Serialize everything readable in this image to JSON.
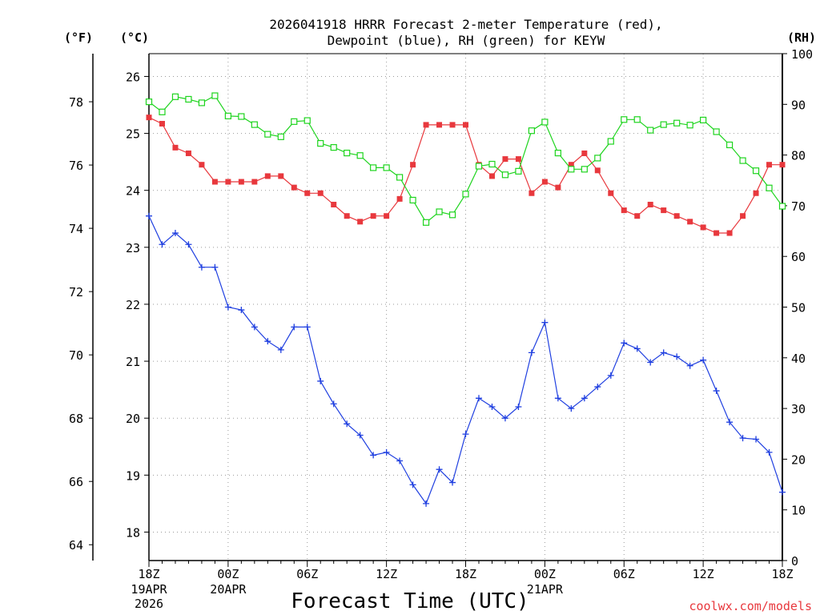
{
  "chart_data": {
    "type": "line",
    "title": [
      "2026041918 HRRR Forecast 2-meter Temperature (red),",
      "Dewpoint (blue), RH (green) for KEYW"
    ],
    "xlabel": "Forecast Time (UTC)",
    "credit": "coolwx.com/models",
    "units": {
      "fahrenheit": "(°F)",
      "celsius": "(°C)",
      "rh": "(RH)"
    },
    "x_hours": {
      "min": 0,
      "max": 48,
      "step": 6
    },
    "x_ticks": [
      {
        "hour": 0,
        "label": "18Z",
        "sub": [
          "19APR",
          "2026"
        ]
      },
      {
        "hour": 6,
        "label": "00Z",
        "sub": [
          "20APR"
        ]
      },
      {
        "hour": 12,
        "label": "06Z",
        "sub": []
      },
      {
        "hour": 18,
        "label": "12Z",
        "sub": []
      },
      {
        "hour": 24,
        "label": "18Z",
        "sub": []
      },
      {
        "hour": 30,
        "label": "00Z",
        "sub": [
          "21APR"
        ]
      },
      {
        "hour": 36,
        "label": "06Z",
        "sub": []
      },
      {
        "hour": 42,
        "label": "12Z",
        "sub": []
      },
      {
        "hour": 48,
        "label": "18Z",
        "sub": []
      }
    ],
    "ylim_celsius": [
      17.5,
      26.4
    ],
    "y_celsius_ticks": [
      "18",
      "19",
      "20",
      "21",
      "22",
      "23",
      "24",
      "25",
      "26"
    ],
    "y_fahrenheit_ticks": [
      "64",
      "66",
      "68",
      "70",
      "72",
      "74",
      "76",
      "78"
    ],
    "ylim_rh": [
      0,
      100
    ],
    "y_rh_ticks": [
      "0",
      "10",
      "20",
      "30",
      "40",
      "50",
      "60",
      "70",
      "80",
      "90",
      "100"
    ],
    "series": [
      {
        "name": "Temperature",
        "color": "#e8383d",
        "marker": "filled-square",
        "axis": "celsius",
        "values": [
          25.28,
          25.17,
          24.75,
          24.65,
          24.45,
          24.15,
          24.15,
          24.15,
          24.15,
          24.25,
          24.25,
          24.05,
          23.95,
          23.95,
          23.75,
          23.55,
          23.45,
          23.55,
          23.55,
          23.85,
          24.45,
          25.15,
          25.15,
          25.15,
          25.15,
          24.45,
          24.25,
          24.55,
          24.55,
          23.95,
          24.15,
          24.05,
          24.45,
          24.65,
          24.35,
          23.95,
          23.65,
          23.55,
          23.75,
          23.65,
          23.55,
          23.45,
          23.35,
          23.25,
          23.25,
          23.55,
          23.95,
          24.45,
          24.45
        ]
      },
      {
        "name": "Dewpoint",
        "color": "#1f3fe0",
        "marker": "plus",
        "axis": "celsius",
        "values": [
          23.55,
          23.05,
          23.25,
          23.05,
          22.65,
          22.65,
          21.95,
          21.9,
          21.6,
          21.35,
          21.2,
          21.6,
          21.6,
          20.65,
          20.25,
          19.9,
          19.7,
          19.35,
          19.4,
          19.25,
          18.83,
          18.5,
          19.1,
          18.87,
          19.72,
          20.35,
          20.2,
          20.0,
          20.2,
          21.15,
          21.68,
          20.35,
          20.17,
          20.35,
          20.55,
          20.75,
          21.32,
          21.22,
          20.98,
          21.15,
          21.08,
          20.92,
          21.02,
          20.48,
          19.93,
          19.65,
          19.63,
          19.4,
          18.7
        ]
      },
      {
        "name": "RH",
        "color": "#1ed41e",
        "marker": "open-square",
        "axis": "rh",
        "values": [
          90.5,
          88.5,
          91.5,
          91.0,
          90.3,
          91.7,
          87.7,
          87.6,
          86.0,
          84.1,
          83.6,
          86.6,
          86.8,
          82.3,
          81.5,
          80.4,
          79.9,
          77.5,
          77.5,
          75.6,
          71.1,
          66.7,
          68.8,
          68.2,
          72.3,
          77.8,
          78.2,
          76.1,
          76.8,
          84.8,
          86.5,
          80.4,
          77.2,
          77.2,
          79.4,
          82.7,
          87.0,
          87.0,
          84.9,
          86.0,
          86.3,
          85.9,
          86.9,
          84.6,
          82.0,
          78.9,
          76.9,
          73.5,
          69.9
        ]
      }
    ]
  }
}
